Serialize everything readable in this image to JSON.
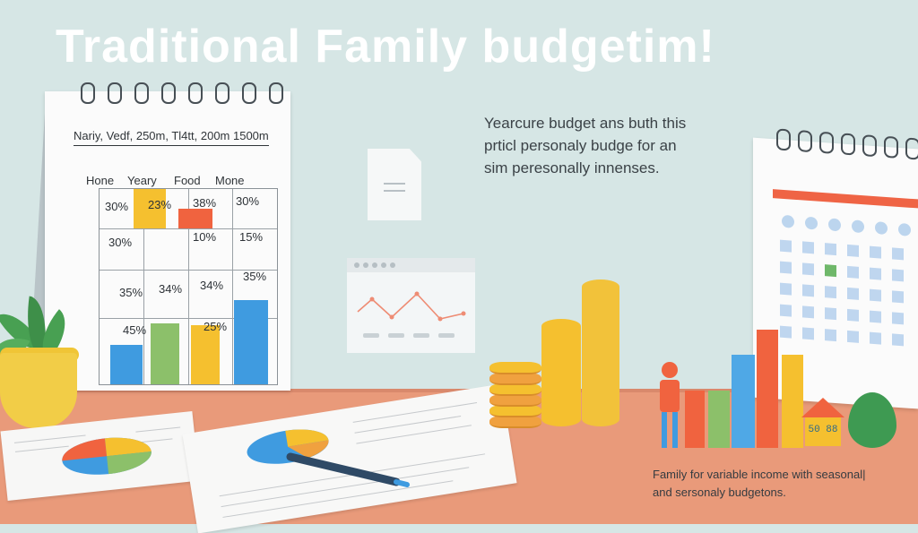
{
  "title": "Traditional Family budgetim!",
  "description": {
    "line1": "Yearcure budget ans buth this",
    "line2": "prticl personaly budge for an",
    "line3": "sim peresonally innenses."
  },
  "caption": {
    "line1": "Family for variable income with seasonal|",
    "line2": "and sersonaly budgetons."
  },
  "calendar": {
    "header": "Nariy, Vedf, 250m, Tl4tt, 200m 1500m",
    "columns": [
      "Hone",
      "Yeary",
      "Food",
      "Mone"
    ],
    "rows": [
      [
        "30%",
        "23%",
        "38%",
        "30%"
      ],
      [
        "30%",
        "",
        "10%",
        "15%"
      ],
      [
        "35%",
        "34%",
        "34%",
        "35%"
      ],
      [
        "45%",
        "",
        "25%",
        ""
      ]
    ]
  },
  "house_sign": "50 88",
  "colors": {
    "background": "#d6e6e5",
    "desk": "#e99a7a",
    "blue": "#3f9be0",
    "yellow": "#f5c02f",
    "red": "#f0633f",
    "green": "#8cc06a",
    "dark_pen": "#2f4a66"
  },
  "icons": [
    "document-icon",
    "line-chart-icon",
    "calendar-icon",
    "pie-chart-icon",
    "pen-icon",
    "coin-stack-icon",
    "house-icon",
    "plant-icon",
    "person-icon"
  ]
}
